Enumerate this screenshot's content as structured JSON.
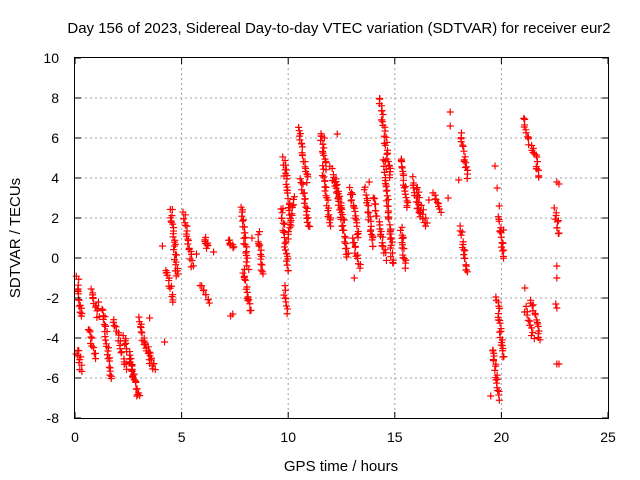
{
  "colors": {
    "series": "#ff0000",
    "axis": "#000000",
    "grid": "#a0a0a0",
    "background": "#ffffff"
  },
  "chart_data": {
    "type": "scatter",
    "title": "Day 156 of 2023, Sidereal Day-to-day VTEC variation (SDTVAR) for receiver eur2",
    "xlabel": "GPS time / hours",
    "ylabel": "SDTVAR / TECUs",
    "xlim": [
      0,
      25
    ],
    "ylim": [
      -8,
      10
    ],
    "xticks": [
      0,
      5,
      10,
      15,
      20,
      25
    ],
    "yticks": [
      -8,
      -6,
      -4,
      -2,
      0,
      2,
      4,
      6,
      8,
      10
    ],
    "grid": true,
    "marker": "plus",
    "series": [
      {
        "name": "SDTVAR",
        "segments": [
          {
            "x": [
              0.1,
              0.3
            ],
            "y": [
              -1.0,
              -3.0
            ]
          },
          {
            "x": [
              0.15,
              0.3
            ],
            "y": [
              -4.6,
              -5.6
            ]
          },
          {
            "x": [
              0.8,
              1.1
            ],
            "y": [
              -1.5,
              -3.0
            ]
          },
          {
            "x": [
              0.6,
              1.0
            ],
            "y": [
              -3.5,
              -5.0
            ]
          },
          {
            "x": [
              1.3,
              1.7
            ],
            "y": [
              -2.5,
              -6.1
            ]
          },
          {
            "x": [
              1.8,
              2.4
            ],
            "y": [
              -3.0,
              -5.5
            ]
          },
          {
            "x": [
              2.3,
              2.8
            ],
            "y": [
              -3.8,
              -6.2
            ]
          },
          {
            "x": [
              2.6,
              3.0
            ],
            "y": [
              -5.0,
              -7.0
            ]
          },
          {
            "x": [
              3.0,
              3.6
            ],
            "y": [
              -3.0,
              -5.5
            ]
          },
          {
            "x": [
              3.2,
              3.8
            ],
            "y": [
              -4.0,
              -5.5
            ]
          },
          {
            "x": [
              4.3,
              4.6
            ],
            "y": [
              -0.5,
              -2.2
            ]
          },
          {
            "x": [
              4.5,
              4.8
            ],
            "y": [
              2.5,
              -1.0
            ]
          },
          {
            "x": [
              5.1,
              5.5
            ],
            "y": [
              2.2,
              -0.5
            ]
          },
          {
            "x": [
              5.9,
              6.3
            ],
            "y": [
              -1.3,
              -2.3
            ]
          },
          {
            "x": [
              6.1,
              6.2
            ],
            "y": [
              1.0,
              0.5
            ]
          },
          {
            "x": [
              7.2,
              7.4
            ],
            "y": [
              0.8,
              0.6
            ]
          },
          {
            "x": [
              7.8,
              8.1
            ],
            "y": [
              2.5,
              -0.5
            ]
          },
          {
            "x": [
              7.9,
              8.2
            ],
            "y": [
              -0.5,
              -2.7
            ]
          },
          {
            "x": [
              8.6,
              8.8
            ],
            "y": [
              1.2,
              -0.8
            ]
          },
          {
            "x": [
              9.7,
              10.0
            ],
            "y": [
              2.5,
              -0.7
            ]
          },
          {
            "x": [
              9.8,
              10.1
            ],
            "y": [
              5.0,
              2.0
            ]
          },
          {
            "x": [
              9.8,
              10.0
            ],
            "y": [
              -1.5,
              -2.7
            ]
          },
          {
            "x": [
              10.0,
              10.3
            ],
            "y": [
              1.0,
              3.0
            ]
          },
          {
            "x": [
              10.5,
              10.9
            ],
            "y": [
              6.5,
              3.8
            ]
          },
          {
            "x": [
              10.6,
              11.0
            ],
            "y": [
              4.0,
              1.5
            ]
          },
          {
            "x": [
              11.5,
              11.8
            ],
            "y": [
              6.3,
              4.5
            ]
          },
          {
            "x": [
              11.6,
              12.0
            ],
            "y": [
              4.5,
              1.5
            ]
          },
          {
            "x": [
              12.0,
              12.6
            ],
            "y": [
              4.5,
              2.0
            ]
          },
          {
            "x": [
              12.2,
              12.8
            ],
            "y": [
              4.0,
              0.0
            ]
          },
          {
            "x": [
              12.9,
              13.3
            ],
            "y": [
              3.5,
              1.0
            ]
          },
          {
            "x": [
              13.0,
              13.4
            ],
            "y": [
              1.0,
              -0.5
            ]
          },
          {
            "x": [
              13.6,
              14.0
            ],
            "y": [
              3.5,
              0.5
            ]
          },
          {
            "x": [
              14.0,
              14.6
            ],
            "y": [
              3.0,
              0.0
            ]
          },
          {
            "x": [
              14.3,
              14.8
            ],
            "y": [
              8.0,
              4.0
            ]
          },
          {
            "x": [
              14.5,
              14.9
            ],
            "y": [
              5.0,
              -0.3
            ]
          },
          {
            "x": [
              15.3,
              15.6
            ],
            "y": [
              5.0,
              2.5
            ]
          },
          {
            "x": [
              15.3,
              15.5
            ],
            "y": [
              1.5,
              -0.5
            ]
          },
          {
            "x": [
              15.8,
              16.2
            ],
            "y": [
              4.0,
              2.0
            ]
          },
          {
            "x": [
              16.0,
              16.5
            ],
            "y": [
              3.5,
              1.5
            ]
          },
          {
            "x": [
              16.8,
              17.2
            ],
            "y": [
              3.3,
              2.2
            ]
          },
          {
            "x": [
              18.1,
              18.4
            ],
            "y": [
              6.2,
              4.0
            ]
          },
          {
            "x": [
              18.1,
              18.4
            ],
            "y": [
              1.5,
              -0.8
            ]
          },
          {
            "x": [
              19.6,
              19.9
            ],
            "y": [
              -4.5,
              -7.0
            ]
          },
          {
            "x": [
              19.8,
              20.1
            ],
            "y": [
              -2.0,
              -5.0
            ]
          },
          {
            "x": [
              19.9,
              20.1
            ],
            "y": [
              2.0,
              0.0
            ]
          },
          {
            "x": [
              21.0,
              21.4
            ],
            "y": [
              7.0,
              5.5
            ]
          },
          {
            "x": [
              21.1,
              21.5
            ],
            "y": [
              -2.5,
              -4.0
            ]
          },
          {
            "x": [
              21.5,
              21.8
            ],
            "y": [
              5.5,
              4.0
            ]
          },
          {
            "x": [
              21.4,
              21.8
            ],
            "y": [
              -2.0,
              -4.0
            ]
          },
          {
            "x": [
              22.5,
              22.7
            ],
            "y": [
              2.5,
              1.2
            ]
          }
        ],
        "points": [
          {
            "x": 7.3,
            "y": -2.9
          },
          {
            "x": 7.4,
            "y": -2.8
          },
          {
            "x": 6.5,
            "y": 0.3
          },
          {
            "x": 5.7,
            "y": 0.2
          },
          {
            "x": 4.2,
            "y": -4.2
          },
          {
            "x": 1.1,
            "y": -2.2
          },
          {
            "x": 17.6,
            "y": 7.3
          },
          {
            "x": 17.6,
            "y": 6.6
          },
          {
            "x": 19.7,
            "y": 4.6
          },
          {
            "x": 19.8,
            "y": 3.5
          },
          {
            "x": 19.9,
            "y": 2.6
          },
          {
            "x": 19.5,
            "y": -6.9
          },
          {
            "x": 20.1,
            "y": 1.4
          },
          {
            "x": 21.1,
            "y": -1.5
          },
          {
            "x": 22.6,
            "y": 3.8
          },
          {
            "x": 22.7,
            "y": 3.7
          },
          {
            "x": 22.6,
            "y": -5.3
          },
          {
            "x": 22.7,
            "y": -5.3
          },
          {
            "x": 22.6,
            "y": -0.4
          },
          {
            "x": 22.6,
            "y": -1.0
          },
          {
            "x": 22.55,
            "y": -2.3
          },
          {
            "x": 22.6,
            "y": -2.5
          },
          {
            "x": 17.5,
            "y": 3.0
          },
          {
            "x": 18.0,
            "y": 3.9
          },
          {
            "x": 16.6,
            "y": 2.9
          },
          {
            "x": 15.4,
            "y": 1.0
          },
          {
            "x": 13.8,
            "y": 3.8
          },
          {
            "x": 12.3,
            "y": 6.2
          },
          {
            "x": 11.7,
            "y": 6.0
          },
          {
            "x": 9.8,
            "y": 4.1
          },
          {
            "x": 8.3,
            "y": 1.0
          },
          {
            "x": 4.1,
            "y": 0.6
          },
          {
            "x": 2.9,
            "y": -6.9
          },
          {
            "x": 3.5,
            "y": -3.0
          },
          {
            "x": 0.05,
            "y": -4.8
          },
          {
            "x": 13.1,
            "y": -1.0
          }
        ]
      }
    ]
  }
}
